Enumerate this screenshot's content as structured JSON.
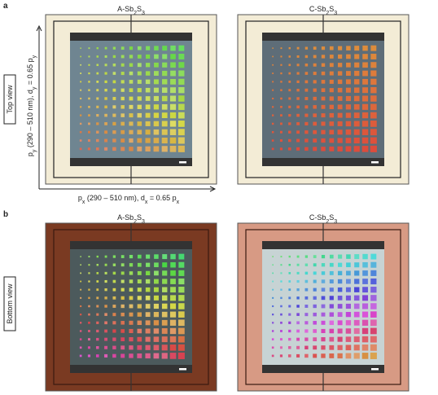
{
  "panels": [
    {
      "label": "a",
      "view": "Top view",
      "y_axis_label": [
        "p",
        "y",
        " (290 – 510 nm), d",
        "y",
        " = 0.65 p",
        "y"
      ],
      "x_axis_label": [
        "p",
        "x",
        " (290 – 510 nm), d",
        "x",
        " = 0.65 p",
        "x"
      ],
      "images": [
        {
          "title": [
            "A-Sb",
            "2",
            "S",
            "3"
          ]
        },
        {
          "title": [
            "C-Sb",
            "2",
            "S",
            "3"
          ]
        }
      ]
    },
    {
      "label": "b",
      "view": "Bottom view",
      "images": [
        {
          "title": [
            "A-Sb",
            "2",
            "S",
            "3"
          ]
        },
        {
          "title": [
            "C-Sb",
            "2",
            "S",
            "3"
          ]
        }
      ]
    }
  ]
}
